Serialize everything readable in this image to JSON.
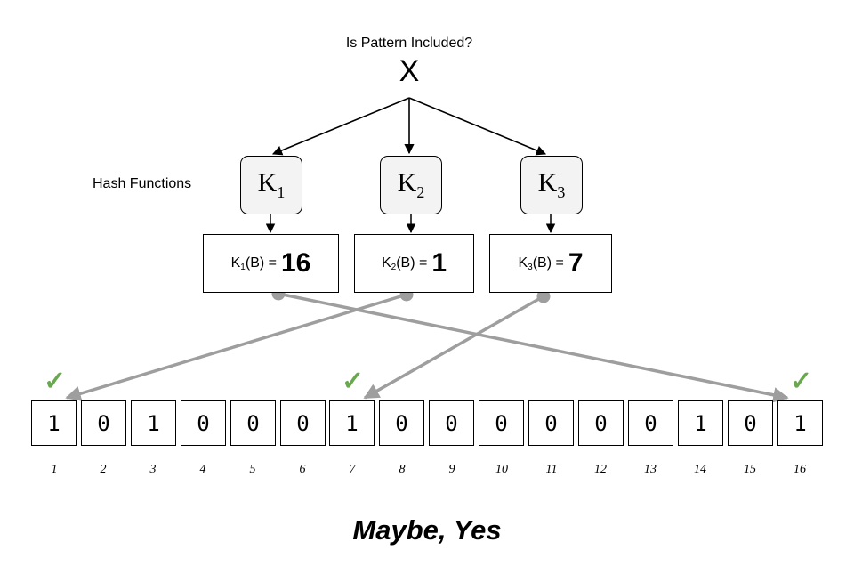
{
  "query": {
    "question": "Is Pattern Included?",
    "input_symbol": "X"
  },
  "hash_functions": {
    "caption": "Hash Functions",
    "items": [
      {
        "letter": "K",
        "sub": "1"
      },
      {
        "letter": "K",
        "sub": "2"
      },
      {
        "letter": "K",
        "sub": "3"
      }
    ]
  },
  "results": [
    {
      "func": "K",
      "sub": "1",
      "arg": "(B) =",
      "value": "16"
    },
    {
      "func": "K",
      "sub": "2",
      "arg": "(B) =",
      "value": "1"
    },
    {
      "func": "K",
      "sub": "3",
      "arg": "(B) =",
      "value": "7"
    }
  ],
  "bit_array": {
    "bits": [
      "1",
      "0",
      "1",
      "0",
      "0",
      "0",
      "1",
      "0",
      "0",
      "0",
      "0",
      "0",
      "0",
      "1",
      "0",
      "1"
    ],
    "indices": [
      "1",
      "2",
      "3",
      "4",
      "5",
      "6",
      "7",
      "8",
      "9",
      "10",
      "11",
      "12",
      "13",
      "14",
      "15",
      "16"
    ],
    "checked_indices": [
      1,
      7,
      16
    ]
  },
  "check_symbol": "✓",
  "verdict": "Maybe, Yes",
  "colors": {
    "connector": "#9e9e9e",
    "check": "#6aa84f",
    "hash_box_fill": "#f3f3f3"
  }
}
